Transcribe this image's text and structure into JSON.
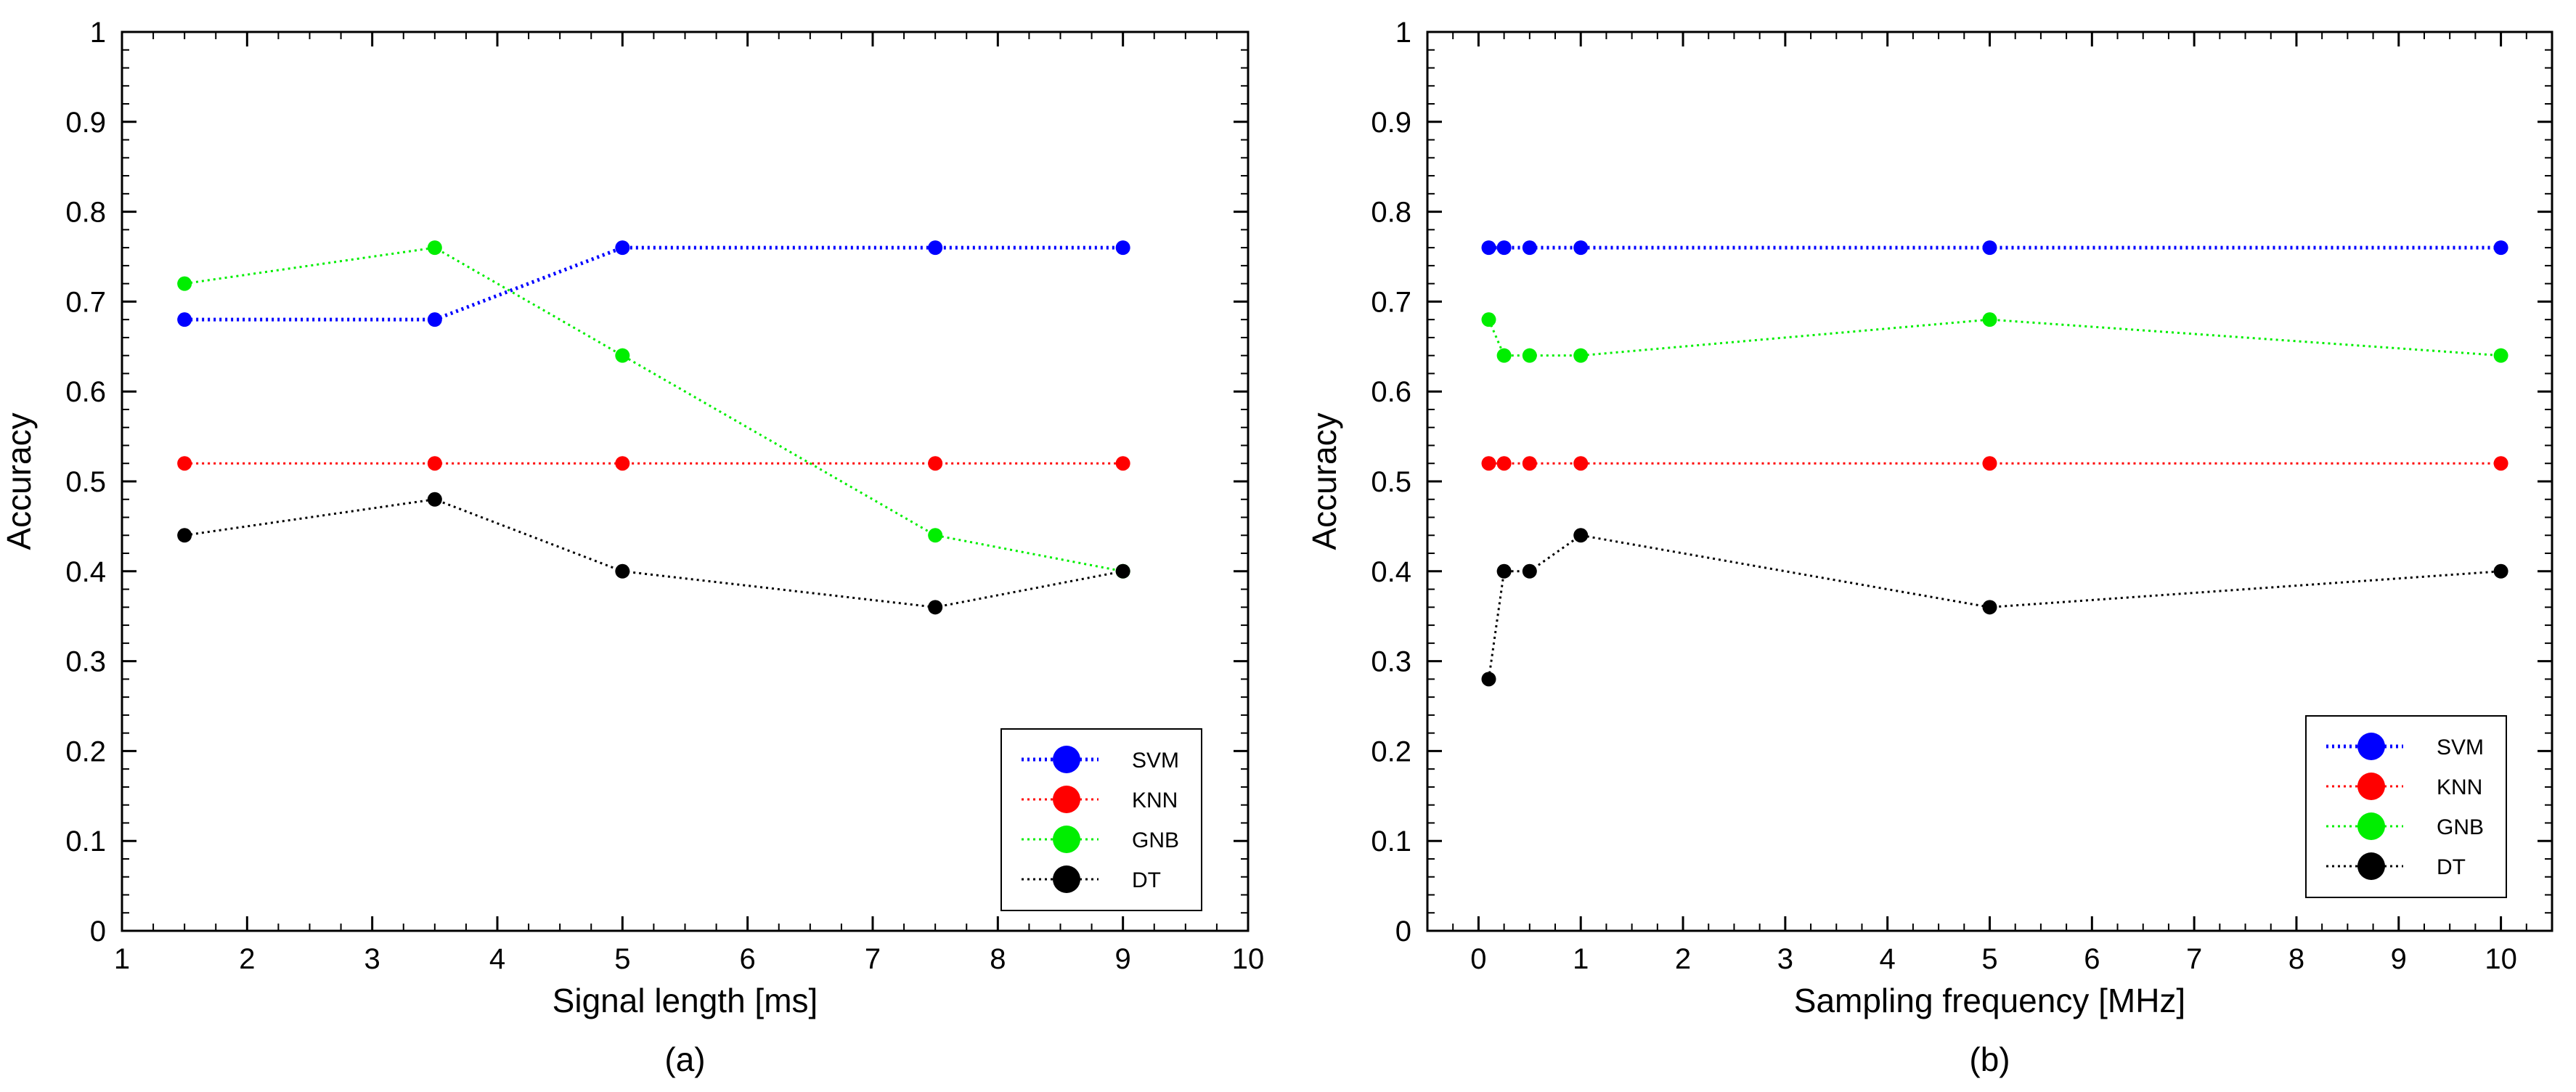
{
  "colors": {
    "SVM": "#0000ff",
    "KNN": "#ff0000",
    "GNB": "#00ee00",
    "DT": "#000000"
  },
  "chart_data": [
    {
      "type": "line",
      "panel_label": "(a)",
      "xlabel": "Signal length [ms]",
      "ylabel": "Accuracy",
      "xlim": [
        1,
        10
      ],
      "ylim": [
        0,
        1
      ],
      "xticks": [
        "1",
        "2",
        "3",
        "4",
        "5",
        "6",
        "7",
        "8",
        "9",
        "10"
      ],
      "yticks": [
        "0",
        "0.1",
        "0.2",
        "0.3",
        "0.4",
        "0.5",
        "0.6",
        "0.7",
        "0.8",
        "0.9",
        "1"
      ],
      "legend_position": "bottom-right",
      "x": [
        1.5,
        3.5,
        5,
        7.5,
        9
      ],
      "series": [
        {
          "name": "SVM",
          "values": [
            0.68,
            0.68,
            0.76,
            0.76,
            0.76
          ]
        },
        {
          "name": "KNN",
          "values": [
            0.52,
            0.52,
            0.52,
            0.52,
            0.52
          ]
        },
        {
          "name": "GNB",
          "values": [
            0.72,
            0.76,
            0.64,
            0.44,
            0.4
          ]
        },
        {
          "name": "DT",
          "values": [
            0.44,
            0.48,
            0.4,
            0.36,
            0.4
          ]
        }
      ]
    },
    {
      "type": "line",
      "panel_label": "(b)",
      "xlabel": "Sampling frequency [MHz]",
      "ylabel": "Accuracy",
      "xlim": [
        -0.5,
        10.5
      ],
      "ylim": [
        0,
        1
      ],
      "xticks": [
        "0",
        "1",
        "2",
        "3",
        "4",
        "5",
        "6",
        "7",
        "8",
        "9",
        "10"
      ],
      "yticks": [
        "0",
        "0.1",
        "0.2",
        "0.3",
        "0.4",
        "0.5",
        "0.6",
        "0.7",
        "0.8",
        "0.9",
        "1"
      ],
      "legend_position": "bottom-right",
      "x": [
        0.1,
        0.25,
        0.5,
        1,
        5,
        10
      ],
      "series": [
        {
          "name": "SVM",
          "values": [
            0.76,
            0.76,
            0.76,
            0.76,
            0.76,
            0.76
          ]
        },
        {
          "name": "KNN",
          "values": [
            0.52,
            0.52,
            0.52,
            0.52,
            0.52,
            0.52
          ]
        },
        {
          "name": "GNB",
          "values": [
            0.68,
            0.64,
            0.64,
            0.64,
            0.68,
            0.64
          ]
        },
        {
          "name": "DT",
          "values": [
            0.28,
            0.4,
            0.4,
            0.44,
            0.36,
            0.4
          ]
        }
      ]
    }
  ]
}
